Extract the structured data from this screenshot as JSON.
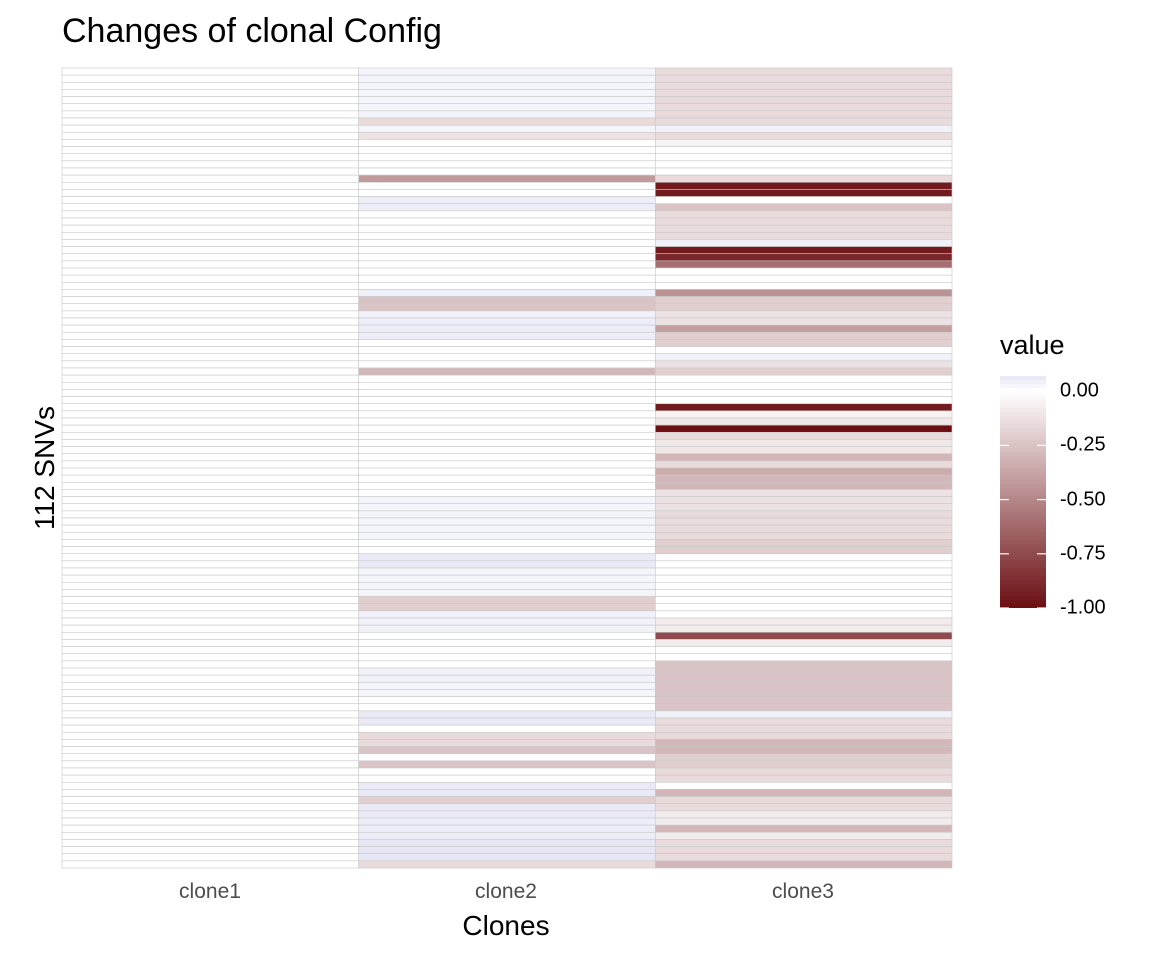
{
  "chart_data": {
    "type": "heatmap",
    "title": "Changes of clonal Config",
    "xlabel": "Clones",
    "ylabel": "112 SNVs",
    "x_categories": [
      "clone1",
      "clone2",
      "clone3"
    ],
    "row_count": 112,
    "legend": {
      "title": "value",
      "position": "right",
      "range": [
        -1.0,
        0.07
      ],
      "ticks": [
        0.0,
        -0.25,
        -0.5,
        -0.75,
        -1.0
      ],
      "tick_labels": [
        "0.00",
        "-0.25",
        "-0.50",
        "-0.75",
        "-1.00"
      ]
    },
    "colors": {
      "low": "#6b0e12",
      "mid": "#ffffff",
      "high": "#e6e6f5",
      "grid": "#c8c8c8"
    },
    "grid": true,
    "series": [
      {
        "name": "clone1",
        "values": [
          0,
          0,
          0,
          0,
          0,
          0,
          0,
          0,
          0,
          0,
          0,
          0,
          0,
          0,
          0,
          0,
          0,
          0,
          0,
          0,
          0,
          0,
          0,
          0,
          0,
          0,
          0,
          0,
          0,
          0,
          0,
          0,
          0,
          0,
          0,
          0,
          0,
          0,
          0,
          0,
          0,
          0,
          0,
          0,
          0,
          0,
          0,
          0,
          0,
          0,
          0,
          0,
          0,
          0,
          0,
          0,
          0,
          0,
          0,
          0,
          0,
          0,
          0,
          0,
          0,
          0,
          0,
          0,
          0,
          0,
          0,
          0,
          0,
          0,
          0,
          0,
          0,
          0,
          0,
          0,
          0,
          0,
          0,
          0,
          0,
          0,
          0,
          0,
          0,
          0,
          0,
          0,
          0,
          0,
          0,
          0,
          0,
          0,
          0,
          0,
          0,
          0,
          0,
          0,
          0,
          0,
          0,
          0,
          0,
          0,
          0,
          0
        ]
      },
      {
        "name": "clone2",
        "values": [
          0.03,
          0.03,
          0.03,
          0.03,
          0.03,
          0.03,
          0.03,
          -0.15,
          0.03,
          -0.12,
          0,
          0,
          0,
          0,
          0,
          -0.42,
          0,
          0,
          0.05,
          0.05,
          0,
          0,
          0,
          0,
          0,
          0,
          0,
          0,
          0,
          0,
          0,
          0.04,
          -0.25,
          -0.25,
          0.04,
          0.05,
          0.05,
          0.05,
          0,
          0,
          0,
          0,
          -0.3,
          0,
          0,
          0,
          0,
          0,
          0,
          0,
          0,
          0,
          0,
          0,
          0,
          0,
          0,
          0,
          0,
          0,
          0.03,
          0.03,
          0.03,
          0.03,
          0.03,
          0.03,
          0,
          0,
          0.06,
          0.06,
          0.03,
          0.03,
          0.03,
          0.03,
          -0.2,
          -0.2,
          0.04,
          0.04,
          0.04,
          0,
          0,
          0,
          0,
          0,
          0.04,
          0.04,
          0.03,
          0.03,
          0,
          0,
          0.06,
          0.06,
          0,
          -0.15,
          -0.15,
          -0.25,
          0,
          -0.25,
          0,
          0,
          0.06,
          0.06,
          -0.2,
          0.06,
          0.06,
          0.05,
          0.05,
          0.05,
          0.08,
          0.08,
          0.08,
          -0.15
        ]
      },
      {
        "name": "clone3",
        "values": [
          -0.15,
          -0.15,
          -0.15,
          -0.15,
          -0.15,
          -0.15,
          -0.15,
          -0.15,
          0.04,
          -0.15,
          -0.05,
          0,
          0,
          0,
          0,
          -0.15,
          -0.95,
          -0.95,
          0,
          -0.25,
          -0.15,
          -0.15,
          -0.15,
          -0.15,
          0.04,
          -0.95,
          -0.9,
          -0.6,
          0,
          0,
          0,
          -0.45,
          -0.2,
          -0.2,
          -0.12,
          -0.12,
          -0.4,
          -0.2,
          -0.2,
          0,
          0.04,
          -0.12,
          -0.2,
          0,
          0,
          0,
          0,
          -0.95,
          -0.05,
          -0.1,
          -1.0,
          -0.15,
          -0.1,
          -0.1,
          -0.3,
          -0.15,
          -0.35,
          -0.3,
          -0.3,
          -0.12,
          -0.12,
          -0.12,
          -0.15,
          -0.15,
          -0.15,
          -0.15,
          -0.2,
          -0.2,
          0,
          0,
          0,
          0,
          0,
          0,
          0,
          0,
          0,
          -0.08,
          -0.08,
          -0.75,
          -0.08,
          0,
          0,
          -0.25,
          -0.25,
          -0.25,
          -0.25,
          -0.25,
          -0.25,
          -0.25,
          0.04,
          -0.15,
          -0.15,
          -0.15,
          -0.3,
          -0.3,
          -0.2,
          -0.2,
          -0.15,
          -0.15,
          0,
          -0.3,
          -0.15,
          -0.15,
          -0.08,
          -0.08,
          -0.3,
          -0.08,
          -0.15,
          -0.15,
          -0.15,
          -0.3
        ]
      }
    ]
  }
}
